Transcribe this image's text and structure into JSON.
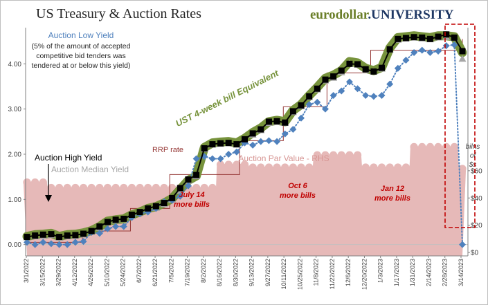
{
  "chart_data": {
    "type": "line",
    "title": "US Treasury & Auction Rates",
    "brand": {
      "part1": "eurodollar",
      "part2": ".UNIVERSITY",
      "color1": "#6b7f2a",
      "color2": "#1f3864"
    },
    "left_axis": {
      "ylim": [
        -0.25,
        4.8
      ],
      "ticks": [
        0,
        1,
        2,
        3,
        4
      ],
      "tick_labels": [
        "0.00",
        "1.00",
        "2.00",
        "3.00",
        "4.00"
      ]
    },
    "right_axis": {
      "label": "bilns of $s",
      "label_lines": [
        "bilns",
        "of",
        "$s"
      ],
      "ylim": [
        -2.5,
        165
      ],
      "ticks": [
        0,
        20,
        40,
        60
      ],
      "tick_labels": [
        "$0",
        "$20",
        "$40",
        "$60"
      ]
    },
    "x_tick_labels": [
      "3/1/2022",
      "3/15/2022",
      "3/29/2022",
      "4/12/2022",
      "4/26/2022",
      "5/10/2022",
      "5/24/2022",
      "6/7/2022",
      "6/21/2022",
      "7/5/2022",
      "7/19/2022",
      "8/2/2022",
      "8/16/2022",
      "8/30/2022",
      "9/13/2022",
      "9/27/2022",
      "10/11/2022",
      "10/25/2022",
      "11/8/2022",
      "11/22/2022",
      "12/6/2022",
      "12/20/2022",
      "1/3/2023",
      "1/17/2023",
      "1/31/2023",
      "2/14/2023",
      "2/28/2023",
      "3/14/2023"
    ],
    "n_points": 55,
    "series": [
      {
        "name": "UST 4-week bill Equivalent",
        "axis": "left",
        "style": "thick-line",
        "color": "#77933c",
        "values": [
          0.18,
          0.22,
          0.23,
          0.25,
          0.18,
          0.22,
          0.23,
          0.26,
          0.31,
          0.4,
          0.52,
          0.55,
          0.57,
          0.66,
          0.72,
          0.8,
          0.84,
          0.92,
          1.02,
          1.22,
          1.42,
          1.52,
          2.15,
          2.25,
          2.27,
          2.28,
          2.25,
          2.35,
          2.48,
          2.58,
          2.72,
          2.75,
          2.72,
          2.97,
          3.1,
          3.3,
          3.48,
          3.68,
          3.75,
          3.85,
          4.05,
          4.02,
          3.9,
          3.85,
          3.92,
          4.35,
          4.58,
          4.6,
          4.62,
          4.6,
          4.58,
          4.62,
          4.62,
          4.6,
          4.25
        ]
      },
      {
        "name": "Auction Median Yield",
        "axis": "left",
        "style": "triangles",
        "color": "#a6a6a6",
        "values": [
          0.15,
          0.17,
          0.18,
          0.2,
          0.14,
          0.17,
          0.18,
          0.21,
          0.27,
          0.36,
          0.48,
          0.52,
          0.55,
          0.62,
          0.7,
          0.76,
          0.8,
          0.88,
          0.98,
          1.18,
          1.4,
          1.5,
          2.1,
          2.2,
          2.22,
          2.23,
          2.2,
          2.3,
          2.42,
          2.52,
          2.68,
          2.7,
          2.68,
          2.92,
          3.05,
          3.25,
          3.42,
          3.62,
          3.68,
          3.8,
          4.0,
          3.97,
          3.85,
          3.82,
          3.88,
          4.3,
          4.52,
          4.55,
          4.57,
          4.55,
          4.53,
          4.57,
          4.58,
          4.56,
          4.1
        ]
      },
      {
        "name": "Auction High Yield",
        "axis": "left",
        "style": "squares",
        "color": "#000000",
        "values": [
          0.17,
          0.2,
          0.22,
          0.23,
          0.17,
          0.2,
          0.21,
          0.24,
          0.3,
          0.4,
          0.5,
          0.55,
          0.57,
          0.66,
          0.72,
          0.8,
          0.85,
          0.92,
          1.03,
          1.25,
          1.44,
          1.54,
          2.13,
          2.22,
          2.24,
          2.25,
          2.22,
          2.33,
          2.46,
          2.55,
          2.72,
          2.73,
          2.7,
          2.95,
          3.08,
          3.28,
          3.45,
          3.65,
          3.72,
          3.85,
          4.0,
          3.99,
          3.88,
          3.83,
          3.91,
          4.32,
          4.55,
          4.57,
          4.59,
          4.58,
          4.55,
          4.6,
          4.65,
          4.58,
          4.28
        ]
      },
      {
        "name": "Auction Low Yield",
        "axis": "left",
        "style": "diamonds-dotted",
        "color": "#4f81bd",
        "values": [
          0.05,
          0.0,
          0.05,
          0.02,
          0.0,
          0.0,
          0.05,
          0.07,
          0.27,
          0.25,
          0.35,
          0.4,
          0.4,
          0.6,
          0.68,
          0.72,
          0.8,
          0.95,
          0.98,
          1.07,
          1.3,
          1.9,
          1.95,
          1.9,
          1.9,
          2.0,
          2.05,
          2.25,
          2.2,
          2.28,
          2.3,
          2.28,
          2.45,
          2.55,
          2.8,
          3.1,
          3.15,
          3.0,
          3.3,
          3.4,
          3.6,
          3.45,
          3.3,
          3.28,
          3.3,
          3.55,
          3.9,
          4.08,
          4.25,
          4.3,
          4.25,
          4.28,
          4.4,
          4.42,
          0.0
        ]
      },
      {
        "name": "RRP rate",
        "axis": "left",
        "style": "step-line",
        "color": "#953735",
        "steps": [
          [
            0,
            0.05
          ],
          [
            13,
            0.3
          ],
          [
            24,
            0.8
          ],
          [
            33,
            1.55
          ],
          [
            49,
            2.3
          ],
          [
            59,
            3.05
          ],
          [
            69,
            3.8
          ],
          [
            79,
            4.3
          ],
          [
            100,
            4.55
          ]
        ],
        "step_domain": [
          0,
          100
        ]
      },
      {
        "name": "Auction Par Value - RHS",
        "axis": "right",
        "style": "cloud-area",
        "color": "#e6b9b8",
        "values": [
          52,
          52,
          52,
          48,
          48,
          48,
          48,
          48,
          48,
          48,
          48,
          48,
          48,
          48,
          48,
          48,
          48,
          48,
          48,
          48,
          48,
          48,
          48,
          48,
          65,
          65,
          65,
          65,
          63,
          63,
          63,
          63,
          63,
          63,
          63,
          63,
          72,
          72,
          72,
          72,
          72,
          72,
          63,
          63,
          63,
          63,
          63,
          63,
          78,
          78,
          78,
          78,
          78,
          78,
          62
        ]
      }
    ],
    "annotations": [
      {
        "label": "Auction Low Yield",
        "color": "#4f81bd"
      },
      {
        "label": "(5% of the amount of accepted",
        "color": "#262626"
      },
      {
        "label": "competitive bid tenders was",
        "color": "#262626"
      },
      {
        "label": "tendered at or below this yield)",
        "color": "#262626"
      },
      {
        "label": "UST 4-week bill Equivalent",
        "color": "#77933c"
      },
      {
        "label": "RRP rate",
        "color": "#953735"
      },
      {
        "label": "Auction Par Value - RHS",
        "color": "#e6b9b8"
      },
      {
        "label": "Auction High Yield",
        "color": "#000000"
      },
      {
        "label": "Auction Median Yield",
        "color": "#a6a6a6"
      },
      {
        "label": "July 14",
        "label2": "more bills",
        "color": "#c00000"
      },
      {
        "label": "Oct 6",
        "label2": "more bills",
        "color": "#c00000"
      },
      {
        "label": "Jan 12",
        "label2": "more bills",
        "color": "#c00000"
      }
    ],
    "grid": false
  }
}
